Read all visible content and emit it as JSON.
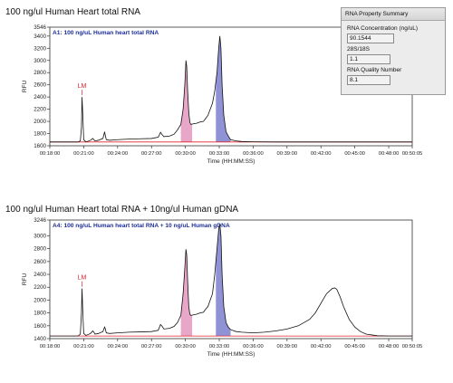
{
  "titles": {
    "top": "100 ng/ul Human Heart total RNA",
    "bottom": "100 ng/ul Human Heart total RNA + 10ng/ul Human gDNA"
  },
  "rna_summary": {
    "header": "RNA Property Summary",
    "concentration_label": "RNA Concentration (ng/uL)",
    "concentration_value": "90.1544",
    "ratio_label": "28S/18S",
    "ratio_value": "1.1",
    "rqn_label": "RNA Quality Number",
    "rqn_value": "8.1"
  },
  "colors": {
    "trace": "#111111",
    "baseline": "#e0202a",
    "peak_18s_fill": "#e8a6c8",
    "peak_28s_fill": "#8f93d6",
    "sample_label": "#1c2f9a",
    "marker_label": "#e0202a"
  },
  "chart_data": [
    {
      "type": "line",
      "title": "100 ng/ul Human Heart total RNA",
      "sample_label": "A1: 100 ng/uL Human heart total RNA",
      "xlabel": "Time (HH:MM:SS)",
      "ylabel": "RFU",
      "xlim": [
        18,
        50.0833
      ],
      "ylim": [
        1600,
        3546
      ],
      "x_ticks": [
        "00:18:00",
        "00:21:00",
        "00:24:00",
        "00:27:00",
        "00:30:00",
        "00:33:00",
        "00:36:00",
        "00:39:00",
        "00:42:00",
        "00:45:00",
        "00:48:00",
        "00:50:05"
      ],
      "y_ticks": [
        "1600",
        "1800",
        "2000",
        "2200",
        "2400",
        "2600",
        "2800",
        "3000",
        "3200",
        "3400",
        "3546"
      ],
      "baseline": 1662,
      "annotation": "LM",
      "marker_x": 20.85,
      "series": [
        {
          "x": [
            18.0,
            20.5,
            20.7,
            20.8,
            20.85,
            20.92,
            21.0,
            21.2,
            21.6,
            21.8,
            21.9,
            22.0,
            22.3,
            22.7,
            22.85,
            22.9,
            23.0,
            23.3,
            24.0,
            25.0,
            26.0,
            27.0,
            27.6,
            27.8,
            27.95,
            28.1,
            28.6,
            29.0,
            29.3,
            29.6,
            29.8,
            29.95,
            30.05,
            30.12,
            30.2,
            30.3,
            30.4,
            30.5,
            30.7,
            31.0,
            31.3,
            31.6,
            31.8,
            32.0,
            32.2,
            32.4,
            32.6,
            32.8,
            32.95,
            33.05,
            33.15,
            33.25,
            33.4,
            33.6,
            33.8,
            34.0,
            34.5,
            35.0,
            36.0,
            38.0,
            40.0,
            42.0,
            44.0,
            46.0,
            48.0,
            50.0833
          ],
          "y": [
            1662,
            1662,
            1680,
            1900,
            2400,
            2100,
            1700,
            1662,
            1690,
            1720,
            1700,
            1680,
            1690,
            1720,
            1830,
            1780,
            1700,
            1690,
            1700,
            1710,
            1715,
            1720,
            1740,
            1820,
            1780,
            1750,
            1760,
            1790,
            1860,
            1950,
            2200,
            2600,
            3000,
            2900,
            2500,
            2150,
            1980,
            1950,
            1960,
            1970,
            1990,
            2000,
            2050,
            2100,
            2200,
            2300,
            2500,
            2800,
            3200,
            3400,
            3200,
            2600,
            2100,
            1830,
            1760,
            1700,
            1680,
            1670,
            1665,
            1662,
            1662,
            1662,
            1662,
            1662,
            1662,
            1662
          ]
        }
      ],
      "shaded_peaks": [
        {
          "x_start": 29.6,
          "x_end": 30.6,
          "fill": "#e8a6c8"
        },
        {
          "x_start": 32.7,
          "x_end": 34.0,
          "fill": "#8f93d6"
        }
      ]
    },
    {
      "type": "line",
      "title": "100 ng/ul Human Heart total RNA + 10ng/ul Human gDNA",
      "sample_label": "A4: 100 ng/uL Human heart total RNA + 10 ng/uL Human gDNA",
      "xlabel": "Time (HH:MM:SS)",
      "ylabel": "RFU",
      "xlim": [
        18,
        50.0833
      ],
      "ylim": [
        1400,
        3246
      ],
      "x_ticks": [
        "00:18:00",
        "00:21:00",
        "00:24:00",
        "00:27:00",
        "00:30:00",
        "00:33:00",
        "00:36:00",
        "00:39:00",
        "00:42:00",
        "00:45:00",
        "00:48:00",
        "00:50:05"
      ],
      "y_ticks": [
        "1400",
        "1600",
        "1800",
        "2000",
        "2200",
        "2400",
        "2600",
        "2800",
        "3000",
        "3246"
      ],
      "baseline": 1440,
      "annotation": "LM",
      "marker_x": 20.85,
      "series": [
        {
          "x": [
            18.0,
            20.5,
            20.7,
            20.8,
            20.85,
            20.92,
            21.0,
            21.2,
            21.6,
            21.8,
            21.9,
            22.0,
            22.3,
            22.7,
            22.85,
            22.9,
            23.0,
            23.3,
            24.0,
            25.0,
            26.0,
            27.0,
            27.6,
            27.8,
            27.95,
            28.1,
            28.6,
            29.0,
            29.3,
            29.6,
            29.8,
            29.95,
            30.05,
            30.12,
            30.2,
            30.3,
            30.4,
            30.5,
            30.7,
            31.0,
            31.3,
            31.6,
            31.8,
            32.0,
            32.2,
            32.4,
            32.6,
            32.8,
            32.95,
            33.05,
            33.15,
            33.25,
            33.4,
            33.6,
            33.8,
            34.0,
            34.5,
            35.0,
            36.0,
            37.0,
            38.0,
            39.0,
            40.0,
            41.0,
            41.5,
            42.0,
            42.5,
            43.0,
            43.2,
            43.4,
            43.7,
            44.0,
            44.5,
            45.0,
            45.5,
            46.0,
            47.0,
            48.0,
            50.0833
          ],
          "y": [
            1440,
            1440,
            1470,
            1800,
            2180,
            1800,
            1480,
            1450,
            1480,
            1520,
            1500,
            1470,
            1480,
            1510,
            1580,
            1560,
            1490,
            1480,
            1490,
            1500,
            1505,
            1510,
            1530,
            1620,
            1590,
            1550,
            1560,
            1590,
            1650,
            1760,
            2100,
            2500,
            2790,
            2700,
            2300,
            1900,
            1780,
            1760,
            1770,
            1780,
            1800,
            1810,
            1860,
            1900,
            2000,
            2100,
            2400,
            2800,
            3100,
            3180,
            3000,
            2400,
            1900,
            1650,
            1580,
            1540,
            1510,
            1500,
            1490,
            1500,
            1520,
            1550,
            1600,
            1700,
            1800,
            1950,
            2100,
            2180,
            2190,
            2170,
            2050,
            1900,
            1700,
            1580,
            1510,
            1470,
            1445,
            1440,
            1440
          ]
        }
      ],
      "shaded_peaks": [
        {
          "x_start": 29.6,
          "x_end": 30.6,
          "fill": "#e8a6c8"
        },
        {
          "x_start": 32.7,
          "x_end": 34.0,
          "fill": "#8f93d6"
        }
      ]
    }
  ]
}
